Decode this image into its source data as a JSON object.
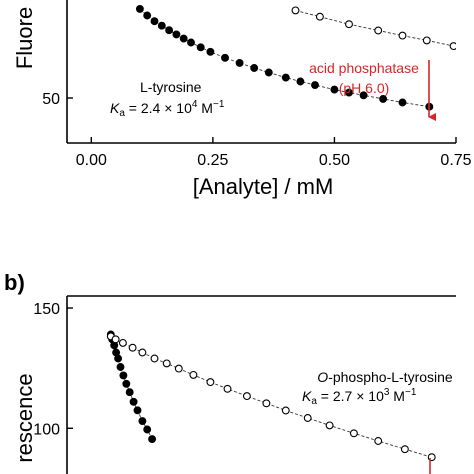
{
  "panel_b_label": "b)",
  "chart_data": [
    {
      "type": "scatter",
      "panel": "a",
      "ylabel": "Fluore",
      "xlabel": "[Analyte] / mM",
      "xlim": [
        -0.05,
        0.75
      ],
      "ylim": [
        35,
        85
      ],
      "xticks": [
        0.0,
        0.25,
        0.5,
        0.75
      ],
      "xtick_labels": [
        "0.00",
        "0.25",
        "0.50",
        "0.75"
      ],
      "yticks": [
        50
      ],
      "ytick_labels": [
        "50"
      ],
      "series": [
        {
          "marker": "filled",
          "x": [
            0.1,
            0.115,
            0.13,
            0.145,
            0.16,
            0.175,
            0.19,
            0.205,
            0.225,
            0.245,
            0.275,
            0.305,
            0.335,
            0.365,
            0.4,
            0.43,
            0.46,
            0.5,
            0.53,
            0.56,
            0.6,
            0.64,
            0.695
          ],
          "y": [
            79.7,
            77.5,
            75.6,
            74.1,
            72.6,
            71.2,
            69.8,
            68.5,
            66.9,
            65.4,
            63.4,
            61.7,
            60.0,
            58.5,
            56.8,
            55.5,
            54.3,
            52.8,
            51.8,
            50.9,
            49.7,
            48.5,
            47.1
          ]
        },
        {
          "marker": "open",
          "x": [
            0.42,
            0.47,
            0.53,
            0.59,
            0.64,
            0.69,
            0.745
          ],
          "y": [
            79.2,
            77.1,
            74.6,
            72.5,
            70.8,
            69.2,
            67.3
          ]
        }
      ],
      "annotations": [
        {
          "text": "L-tyrosine"
        },
        {
          "text_prefix": "K",
          "text_sub": "a",
          "text_mid": " = 2.4 × 10",
          "text_sup": "4",
          "text_unit": " M",
          "text_unit_sup": "−1"
        },
        {
          "text": "acid phosphatase",
          "color": "#d62728"
        },
        {
          "text": "(pH 6.0)",
          "color": "#d62728"
        }
      ]
    },
    {
      "type": "scatter",
      "panel": "b",
      "ylabel": "rescence",
      "xlim": [
        -0.05,
        0.75
      ],
      "ylim": [
        81,
        155
      ],
      "yticks": [
        100,
        150
      ],
      "ytick_labels": [
        "100",
        "150"
      ],
      "series": [
        {
          "marker": "filled",
          "x": [
            0.04,
            0.043,
            0.047,
            0.051,
            0.055,
            0.06,
            0.066,
            0.072,
            0.079,
            0.087,
            0.095,
            0.105,
            0.115,
            0.125
          ],
          "y": [
            139.0,
            137.0,
            134.5,
            131.5,
            129.0,
            125.5,
            122.0,
            118.5,
            115.0,
            111.0,
            107.5,
            103.0,
            99.5,
            95.5
          ]
        },
        {
          "marker": "open",
          "x": [
            0.04,
            0.05,
            0.065,
            0.085,
            0.105,
            0.13,
            0.155,
            0.18,
            0.21,
            0.245,
            0.28,
            0.32,
            0.36,
            0.4,
            0.445,
            0.49,
            0.54,
            0.59,
            0.645,
            0.7
          ],
          "y": [
            138.2,
            137.0,
            135.5,
            133.5,
            131.5,
            129.0,
            127.0,
            124.8,
            122.2,
            119.2,
            116.4,
            113.4,
            110.4,
            107.4,
            104.3,
            101.2,
            97.9,
            94.7,
            91.3,
            88.0
          ]
        }
      ],
      "annotations": [
        {
          "text_italic": "O",
          "text": "-phospho-L-tyrosine"
        },
        {
          "text_prefix": "K",
          "text_sub": "a",
          "text_mid": " = 2.7 × 10",
          "text_sup": "3",
          "text_unit": " M",
          "text_unit_sup": "−1"
        }
      ]
    }
  ]
}
